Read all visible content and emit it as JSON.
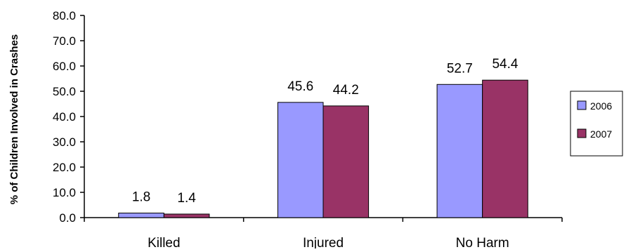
{
  "chart_data": {
    "type": "bar",
    "title": "",
    "xlabel": "",
    "ylabel": "% of Children Involved in Crashes",
    "ylim": [
      0,
      80
    ],
    "y_ticks": [
      "0.0",
      "10.0",
      "20.0",
      "30.0",
      "40.0",
      "50.0",
      "60.0",
      "70.0",
      "80.0"
    ],
    "categories": [
      "Killed",
      "Injured",
      "No Harm"
    ],
    "series": [
      {
        "name": "2006",
        "values": [
          1.8,
          45.6,
          52.7
        ],
        "color": "#9999ff"
      },
      {
        "name": "2007",
        "values": [
          1.4,
          44.2,
          54.4
        ],
        "color": "#993366"
      }
    ],
    "data_labels": [
      [
        "1.8",
        "45.6",
        "52.7"
      ],
      [
        "1.4",
        "44.2",
        "54.4"
      ]
    ],
    "grid": false,
    "legend_position": "right"
  }
}
